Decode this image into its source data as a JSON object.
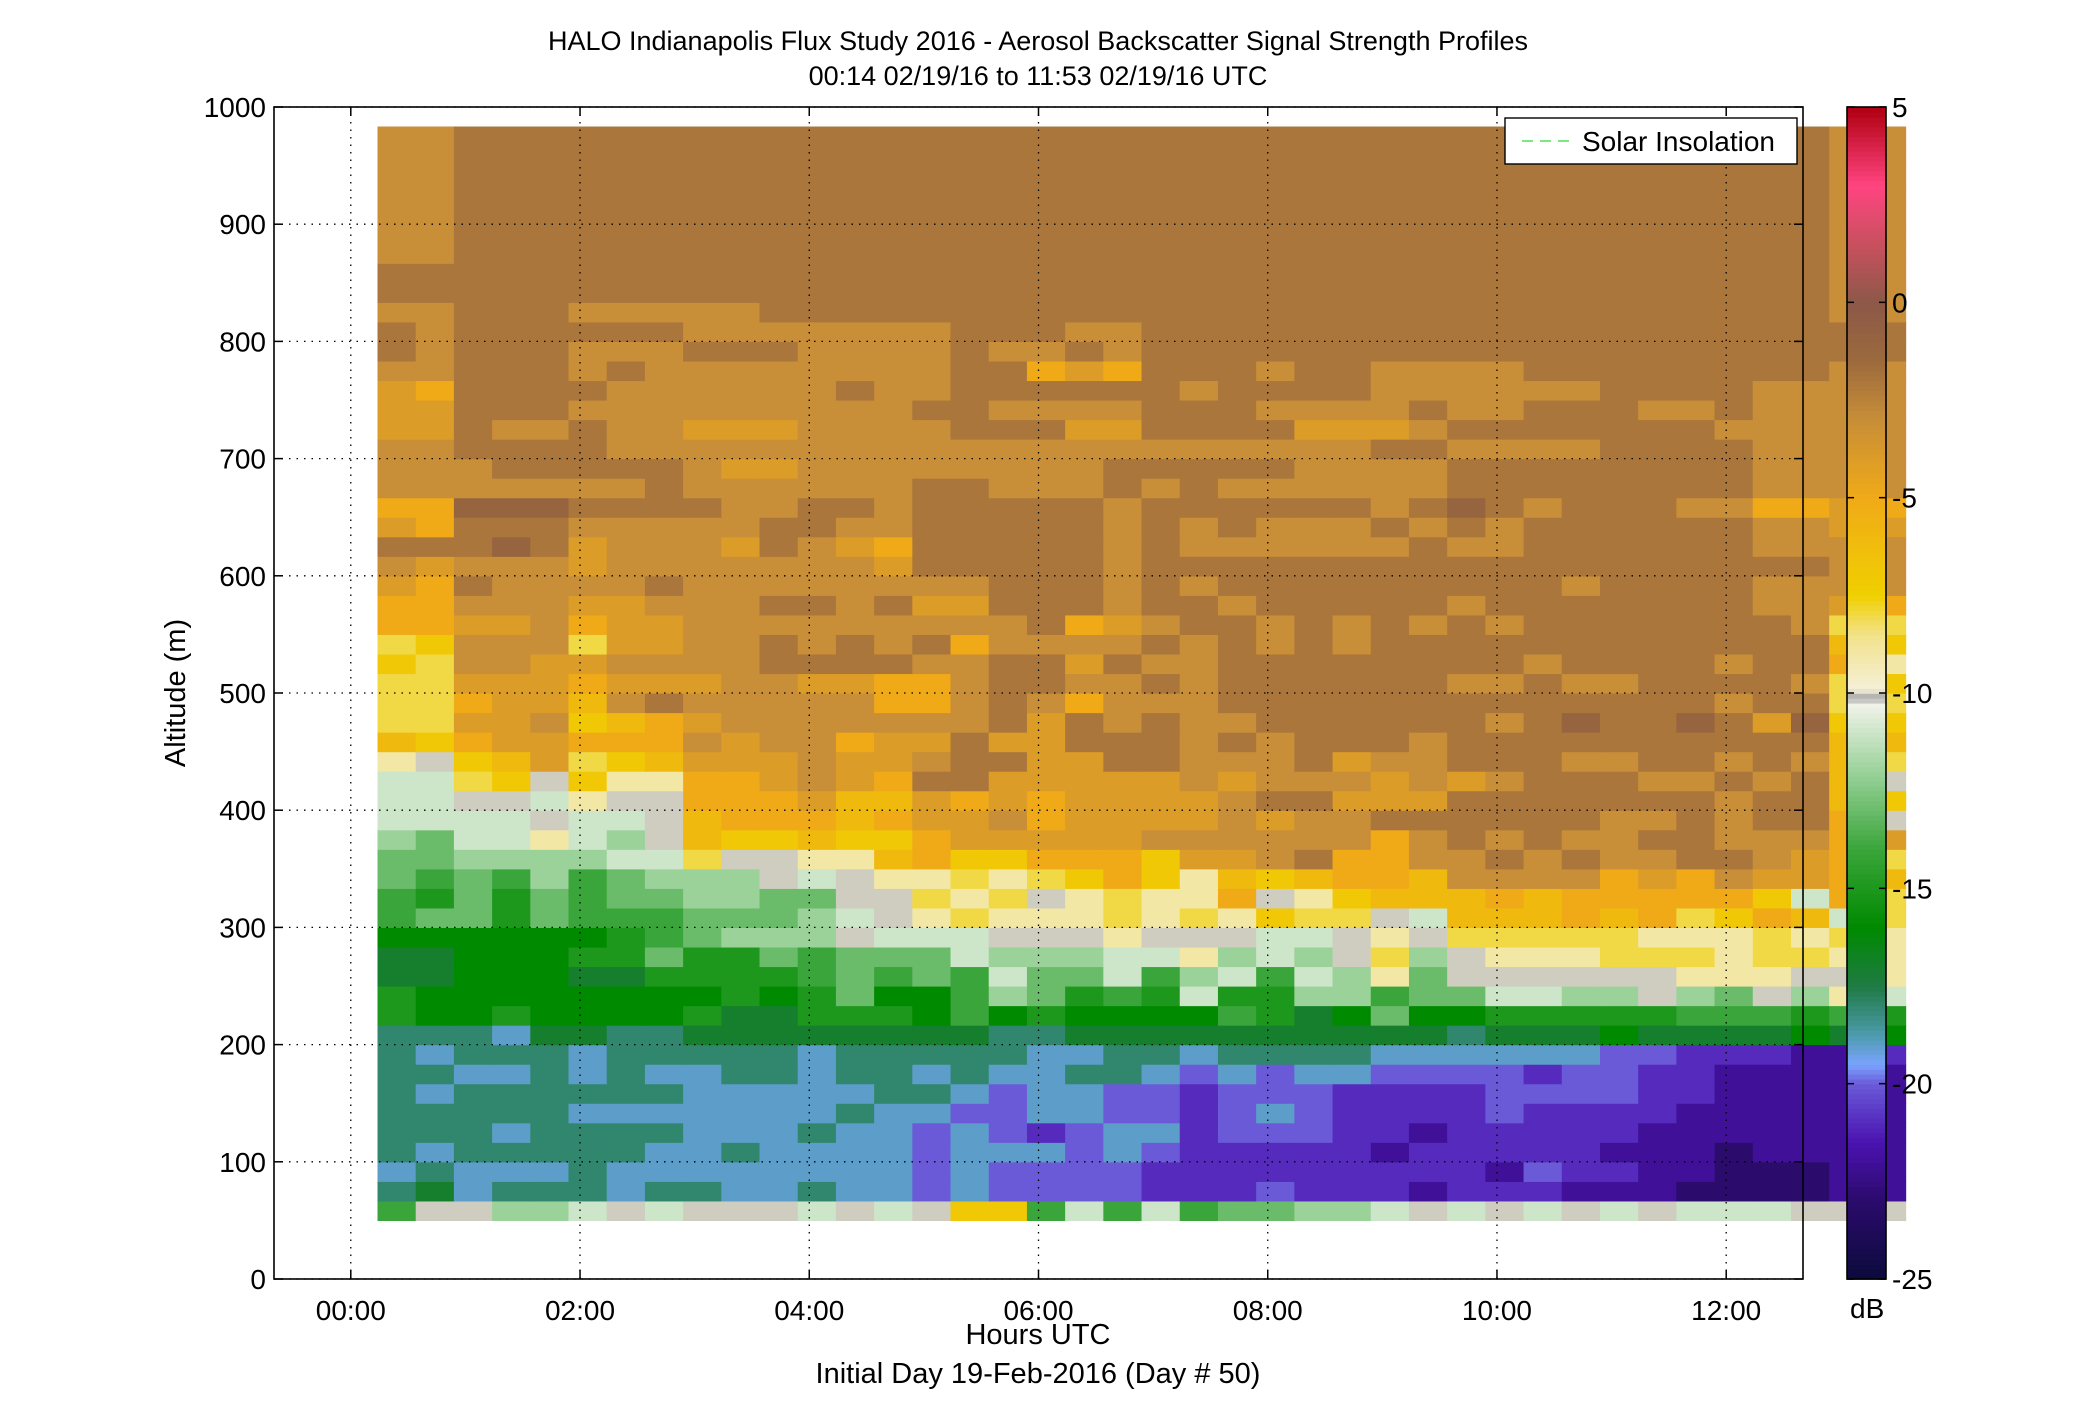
{
  "chart_data": {
    "type": "heatmap",
    "title": "HALO Indianapolis Flux Study 2016 - Aerosol Backscatter Signal Strength Profiles",
    "subtitle": "00:14 02/19/16 to 11:53 02/19/16  UTC",
    "xlabel": "Hours UTC",
    "xlabel2": "Initial Day 19-Feb-2016 (Day # 50)",
    "ylabel": "Altitude (m)",
    "xlim": [
      -0.67,
      12.67
    ],
    "ylim": [
      0,
      1000
    ],
    "grid": true,
    "x_ticks": [
      {
        "v": 0,
        "label": "00:00"
      },
      {
        "v": 2,
        "label": "02:00"
      },
      {
        "v": 4,
        "label": "04:00"
      },
      {
        "v": 6,
        "label": "06:00"
      },
      {
        "v": 8,
        "label": "08:00"
      },
      {
        "v": 10,
        "label": "10:00"
      },
      {
        "v": 12,
        "label": "12:00"
      }
    ],
    "y_ticks": [
      {
        "v": 0,
        "label": "0"
      },
      {
        "v": 100,
        "label": "100"
      },
      {
        "v": 200,
        "label": "200"
      },
      {
        "v": 300,
        "label": "300"
      },
      {
        "v": 400,
        "label": "400"
      },
      {
        "v": 500,
        "label": "500"
      },
      {
        "v": 600,
        "label": "600"
      },
      {
        "v": 700,
        "label": "700"
      },
      {
        "v": 800,
        "label": "800"
      },
      {
        "v": 900,
        "label": "900"
      },
      {
        "v": 1000,
        "label": "1000"
      }
    ],
    "legend": {
      "label": "Solar Insolation",
      "placement": "top-right",
      "color": "#7de87d",
      "style": "dashed"
    },
    "colorbar": {
      "label": "dB",
      "range": [
        -25,
        5
      ],
      "ticks": [
        {
          "v": 5,
          "label": "5"
        },
        {
          "v": 0,
          "label": "0"
        },
        {
          "v": -5,
          "label": "-5"
        },
        {
          "v": -10,
          "label": "-10"
        },
        {
          "v": -15,
          "label": "-15"
        },
        {
          "v": -20,
          "label": "-20"
        },
        {
          "v": -25,
          "label": "-25"
        }
      ],
      "stops": [
        {
          "v": -25,
          "color": "#0b0b3b"
        },
        {
          "v": -23,
          "color": "#2b0b6b"
        },
        {
          "v": -21.5,
          "color": "#4a12b0"
        },
        {
          "v": -20,
          "color": "#6a5ad8"
        },
        {
          "v": -19.5,
          "color": "#7aa4ff"
        },
        {
          "v": -18.7,
          "color": "#4a9aa8"
        },
        {
          "v": -17.5,
          "color": "#1f7a44"
        },
        {
          "v": -16,
          "color": "#008a00"
        },
        {
          "v": -14,
          "color": "#3aa53a"
        },
        {
          "v": -12,
          "color": "#9ad29a"
        },
        {
          "v": -10.3,
          "color": "#f0f2e8"
        },
        {
          "v": -10.1,
          "color": "#a8a8a8"
        },
        {
          "v": -9.9,
          "color": "#f5f0d8"
        },
        {
          "v": -8.5,
          "color": "#f2e28a"
        },
        {
          "v": -7.5,
          "color": "#f0d000"
        },
        {
          "v": -5,
          "color": "#f0aa18"
        },
        {
          "v": -3,
          "color": "#c88e38"
        },
        {
          "v": -1.5,
          "color": "#9c6a3c"
        },
        {
          "v": 0,
          "color": "#8c5848"
        },
        {
          "v": 1.5,
          "color": "#c8505e"
        },
        {
          "v": 3,
          "color": "#ff4480"
        },
        {
          "v": 5,
          "color": "#b00010"
        }
      ]
    },
    "grid_spec": {
      "x_start_hours": 0.233,
      "x_step_hours": 0.3333,
      "y_start_m": 50,
      "y_step_m": 16.667,
      "value_encoding": "dB = code - 25"
    },
    "data_rows_bottom_to_top": [
      "LPPNNOPOPPPOPOPSSLOLOLMMNNOPOPOPOPOOOPPP",
      "HIGHHHGHHGGHGGFGFFFFEEEFEEEDEEEDDDCCCCDD",
      "GHGGGHGGGGGGGGFGFFFFEEEEEEEEEDFEEDDCCCDD",
      "HGHHHHHGGHGGGGFGGGFGFEEEEEDEEEEEDDDCDDDD",
      "HHHGHHHHGGGHGGFGFEFGGEFFFEEDEEEEEDDDDDDD",
      "HHHHHGGGGGGGHGGFFGGFFEFGFEEEEFEEEEDDDDDD",
      "HGHHHHHHGGGGGHHGFGGFFEFFFEEEEFFFFEEDDDDD",
      "HHGGHGHGGHHGHHGHGGHHGFGFGGFFFFEFFEEDDDDD",
      "HGHHHGHHHHHGHHHHHGGHHGHHHHGGGGGGFFEEEDDE",
      "HHHGIIHHIIIIIIIIHHIIIIIIIIIIHIIIJIIIIJIJ",
      "KJJKJJJJKIIKKKJLJKJJJJLKIJMJJKKKKKLLLKLK",
      "KJJJJJJJJKJKMJJLNMKLKOKKNNLMMOONNPNMPNQO",
      "IIJJJIIKKKKLMLMLOMMOLNOLONQMPPPPPPQQQPPQ",
      "IIJJJKKMKKMLMMMONNNOOQNONPRNPQQQRRRQRRQQ",
      "JJJJJJKLMNNNPOOOPPPQPPPOOPQPRRRRRQQQRQRQ",
      "LMMKMLLLMMMNOPQRQQQRQRQSRRPOTTTUTURSUTOR",
      "LKMKMLMMNNMMPPRQRPQRQQUPQSTTTUTUUUUUSOUR",
      "MLMLNLMNNNPOPQQRQRSUSQTSTUUTWWWWUVUWVVUT",
      "MMNNNNOORPPQQTUSSUUUSVVWXUUWWXWXWWXXWVUR",
      "NMOOQONPTSSTSSUVVVVVWWWWWWUWXWXWWXXWWWUV",
      "OOOOPOOPTUUUTUVVWUVVVVWVWWXXXXXXWWXWXXUP",
      "OOPPOQPPUUUVTTVUVUVVVVWXXVVVXXXXXXXWXXTS",
      "OORSPSQQUUVWVUXXVVVVVWVWWWVWVWXXXWWXWXTP",
      "QPSTVRSTVVVWVVWXXVVXXWWWXVWWXXXWWXXWXWTR",
      "TSUVVUUUWVWWUVVXVVXXXWXWXXXWXXXXXXXXXXTT",
      "RRVVWSTUVWWWWWWWXVXWXWWXXXXXXWXYXXYXVYSS",
      "RRUVVTWXWWWWWUUWXWUWWWXXXXXXXXXXXXXWXXRR",
      "RRVVVUVVVWWVVUUWXXWWXWXXXXXXWWXWWXXXXWRS",
      "SRWWVVWWWWXXXXWWXXVXWWXXXXXXXXWXXXXWXXUQ",
      "RSWWWRVVWWXWXWXUWWWWXWXWXWXXXXXXXXXXXXTS",
      "UUVVWUVVWWWWWWWWWXUVWXXWXWXWXWXXXXXXXWRR",
      "UUWWWVVWWWXXWXVVXXXWXXWXXXXXWXXXXXXXWWVU",
      "VUXWWWWXWWWWWWWWXXXWXWXXXXXXXXXWXXXXWWWW",
      "WVWWWVWWWWWWWVXXXXXWXXXXXXXXXXXXXXXXXXWW",
      "XXXYXVWWWVXWVUXXXXXWXWWWWWWXWWXXXXXXWWWW",
      "VUXXXWWWWWXXWWXXXXXWXWXWWWXWXWXXXXXXWWVV",
      "UUYYYXXXXWWXXWXXXXXWXXXXXXWXYXWXXXWWUUVU",
      "WWWWWWWXWWWWWWXXWWWXWXWWWWWWXXXXXXXXWWWW",
      "WWWXXXXXWVVWWWWWWWWXXXXXWWWWXXXXXXXXWWWW",
      "WWXXXXWWWWWWWWWWWWWWWWWWWWXXWWWWXXXXWWWW",
      "VVXWWXWWVVVWWWWXXXVVXXXXVVVWXXXXXXXWWWWW",
      "VVXXXWWWWWWWWWXXWWWWXXXWWWWXWWXXXWWXWWWW",
      "VUXXXXWWWWWWXWWXXXXXXWXXXXWWWWWWXXXXWWWW",
      "WWXXXWXWWWWWWWWXXUVUXXXWXXWWWWXXXXXXXXWW",
      "XWXXXWWWXXXWWWWXWWXWXXXXXXXXXXXXXXXXXXXX",
      "XWXXXXXXWWWWWWWXXXWWXXXXXXXXXXXXXXXXXXXX",
      "WWXXXWWWWWXXXXXXXXXXXXXXXXXXXXXXXXXXXXWW",
      "XXXXXXXXXXXXXXXXXXXXXXXXXXXXXXXXXXXXXXWW",
      "XXXXXXXXXXXXXXXXXXXXXXXXXXXXXXXXXXXXXXWW",
      "WWXXXXXXXXXXXXXXXXXXXXXXXXXXXXXXXXXXXXWW",
      "WWXXXXXXXXXXXXXXXXXXXXXXXXXXXXXXXXXXXXWW",
      "WWXXXXXXXXXXXXXXXXXXXXXXXXXXXXXXXXXXXXWW",
      "WWXXXXXXXXXXXXXXXXXXXXXXXXXXXXXXXXXXXXWW",
      "WWXXXXXXXXXXXXXXXXXXXXXXXXXXXXXXXXXXXXWW",
      "WWXXXXXXXXXXXXXXXXXXXXXXXXXXXXXXXXXXXXWW",
      "WWXXXXXXXXXXXXXXXXXXXXXXXXXXXXXXXXXXXXWW"
    ]
  }
}
